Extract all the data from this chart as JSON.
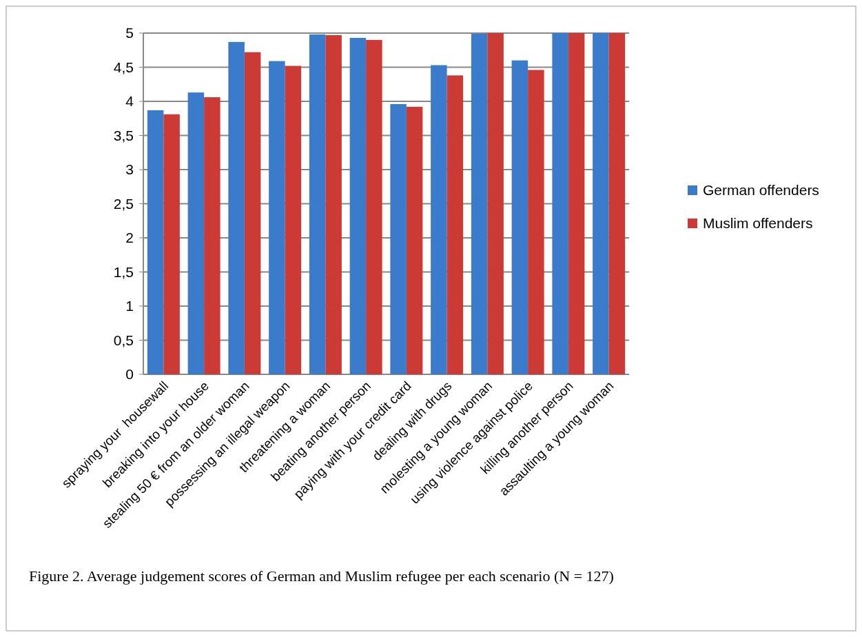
{
  "chart_data": {
    "type": "bar",
    "categories": [
      "spraying your  housewall",
      "breaking into your house",
      "stealing 50 € from an older woman",
      "possessing an illegal weapon",
      "threatening a woman",
      "beating another person",
      "paying with your credit card",
      "dealing with drugs",
      "molesting a young woman",
      "using violence against police",
      "killing another person",
      "assaulting a young woman"
    ],
    "series": [
      {
        "name": "German offenders",
        "color": "#3a7bcc",
        "values": [
          3.87,
          4.13,
          4.87,
          4.59,
          4.98,
          4.93,
          3.96,
          4.53,
          4.99,
          4.6,
          5.0,
          5.0
        ]
      },
      {
        "name": "Muslim offenders",
        "color": "#cc3a36",
        "values": [
          3.81,
          4.06,
          4.72,
          4.52,
          4.97,
          4.9,
          3.92,
          4.38,
          5.0,
          4.46,
          5.0,
          5.0
        ]
      }
    ],
    "ylim": [
      0,
      5
    ],
    "yticks": [
      0,
      {
        "value": 0.5,
        "label": "0,5"
      },
      1,
      {
        "value": 1.5,
        "label": "1,5"
      },
      2,
      {
        "value": 2.5,
        "label": "2,5"
      },
      3,
      {
        "value": 3.5,
        "label": "3,5"
      },
      4,
      {
        "value": 4.5,
        "label": "4,5"
      },
      5
    ],
    "grid": "y",
    "legend": "right",
    "annotations": [
      "Figure 2. Average judgement scores of German and Muslim refugee per each scenario (N = 127)"
    ]
  }
}
